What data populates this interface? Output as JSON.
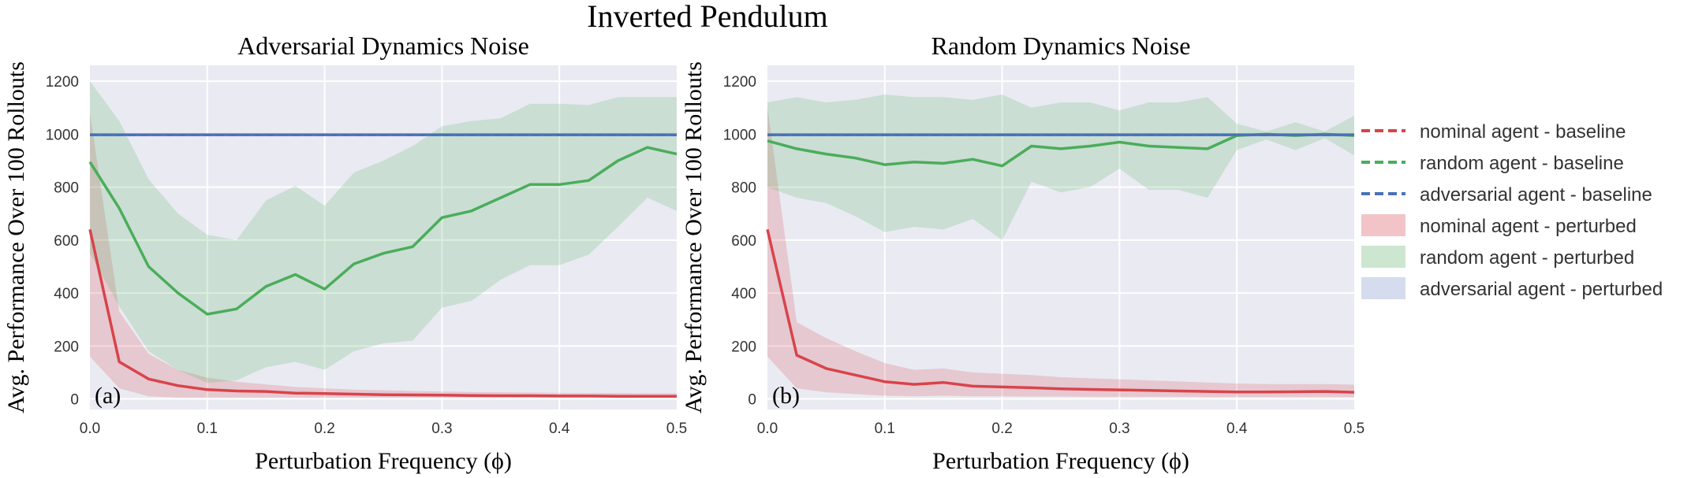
{
  "figure_title": "Inverted Pendulum",
  "legend": [
    {
      "label": "nominal agent - baseline",
      "kind": "line",
      "color": "#d9434b"
    },
    {
      "label": "random agent - baseline",
      "kind": "line",
      "color": "#4aad5a"
    },
    {
      "label": "adversarial agent - baseline",
      "kind": "line",
      "color": "#4a72b8"
    },
    {
      "label": "nominal agent - perturbed",
      "kind": "band",
      "color": "#f2c4c8"
    },
    {
      "label": "random agent - perturbed",
      "kind": "band",
      "color": "#cde6cf"
    },
    {
      "label": "adversarial agent - perturbed",
      "kind": "band",
      "color": "#d5dcee"
    }
  ],
  "colors": {
    "panel_bg": "#eaeaf2",
    "grid": "#ffffff",
    "nominal": "#d9434b",
    "random": "#4aad5a",
    "adversarial": "#4a72b8"
  },
  "chart_data": [
    {
      "type": "line",
      "panel_label": "(a)",
      "title": "Adversarial Dynamics Noise",
      "xlabel": "Perturbation Frequency (ϕ)",
      "ylabel": "Avg. Performance Over 100 Rollouts",
      "xlim": [
        0,
        0.5
      ],
      "ylim": [
        -40,
        1260
      ],
      "xticks": [
        0.0,
        0.1,
        0.2,
        0.3,
        0.4,
        0.5
      ],
      "xtick_labels": [
        "0.0",
        "0.1",
        "0.2",
        "0.3",
        "0.4",
        "0.5"
      ],
      "yticks": [
        0,
        200,
        400,
        600,
        800,
        1000,
        1200
      ],
      "ytick_labels": [
        "0",
        "200",
        "400",
        "600",
        "800",
        "1000",
        "1200"
      ],
      "grid": true,
      "x": [
        0.0,
        0.025,
        0.05,
        0.075,
        0.1,
        0.125,
        0.15,
        0.175,
        0.2,
        0.225,
        0.25,
        0.275,
        0.3,
        0.325,
        0.35,
        0.375,
        0.4,
        0.425,
        0.45,
        0.475,
        0.5
      ],
      "series": [
        {
          "name": "nominal agent - perturbed",
          "color": "#d9434b",
          "style": "solid",
          "values": [
            640,
            140,
            75,
            50,
            35,
            30,
            28,
            22,
            20,
            18,
            16,
            15,
            14,
            13,
            12,
            12,
            11,
            11,
            10,
            10,
            10
          ],
          "lower": [
            160,
            40,
            10,
            5,
            5,
            5,
            5,
            5,
            5,
            5,
            5,
            5,
            5,
            5,
            5,
            5,
            5,
            5,
            5,
            5,
            5
          ],
          "upper": [
            1080,
            330,
            170,
            110,
            80,
            65,
            55,
            45,
            40,
            35,
            33,
            30,
            28,
            26,
            25,
            24,
            23,
            22,
            22,
            21,
            21
          ]
        },
        {
          "name": "random agent - perturbed",
          "color": "#4aad5a",
          "style": "solid",
          "values": [
            895,
            720,
            500,
            400,
            320,
            340,
            425,
            470,
            415,
            510,
            550,
            575,
            685,
            710,
            760,
            810,
            810,
            825,
            900,
            950,
            925
          ],
          "lower": [
            550,
            350,
            180,
            110,
            60,
            70,
            120,
            140,
            110,
            180,
            210,
            220,
            345,
            370,
            450,
            505,
            505,
            545,
            650,
            760,
            710
          ],
          "upper": [
            1200,
            1050,
            830,
            700,
            620,
            600,
            750,
            805,
            730,
            855,
            900,
            955,
            1030,
            1050,
            1060,
            1115,
            1115,
            1110,
            1140,
            1140,
            1140
          ]
        },
        {
          "name": "nominal agent - baseline",
          "color": "#d9434b",
          "style": "dashed",
          "values": [
            997,
            997,
            997,
            997,
            997,
            997,
            997,
            997,
            997,
            997,
            997,
            997,
            997,
            997,
            997,
            997,
            997,
            997,
            997,
            997,
            997
          ]
        },
        {
          "name": "random agent - baseline",
          "color": "#4aad5a",
          "style": "dashed",
          "values": [
            997,
            997,
            997,
            997,
            997,
            997,
            997,
            997,
            997,
            997,
            997,
            997,
            997,
            997,
            997,
            997,
            997,
            997,
            997,
            997,
            997
          ]
        },
        {
          "name": "adversarial agent - baseline",
          "color": "#4a72b8",
          "style": "dashed",
          "values": [
            997,
            997,
            997,
            997,
            997,
            997,
            997,
            997,
            997,
            997,
            997,
            997,
            997,
            997,
            997,
            997,
            997,
            997,
            997,
            997,
            997
          ]
        },
        {
          "name": "adversarial agent - perturbed",
          "color": "#4a72b8",
          "style": "solid",
          "values": [
            998,
            998,
            998,
            998,
            998,
            998,
            998,
            998,
            998,
            998,
            998,
            998,
            998,
            998,
            998,
            998,
            998,
            998,
            998,
            998,
            998
          ],
          "lower": [
            992,
            992,
            992,
            992,
            992,
            992,
            992,
            992,
            992,
            992,
            992,
            992,
            992,
            992,
            992,
            992,
            992,
            992,
            992,
            992,
            992
          ],
          "upper": [
            1003,
            1003,
            1003,
            1003,
            1003,
            1003,
            1003,
            1003,
            1003,
            1003,
            1003,
            1003,
            1003,
            1003,
            1003,
            1003,
            1003,
            1003,
            1003,
            1003,
            1003
          ]
        }
      ]
    },
    {
      "type": "line",
      "panel_label": "(b)",
      "title": "Random Dynamics Noise",
      "xlabel": "Perturbation Frequency (ϕ)",
      "ylabel": "Avg. Performance Over 100 Rollouts",
      "xlim": [
        0,
        0.5
      ],
      "ylim": [
        -40,
        1260
      ],
      "xticks": [
        0.0,
        0.1,
        0.2,
        0.3,
        0.4,
        0.5
      ],
      "xtick_labels": [
        "0.0",
        "0.1",
        "0.2",
        "0.3",
        "0.4",
        "0.5"
      ],
      "yticks": [
        0,
        200,
        400,
        600,
        800,
        1000,
        1200
      ],
      "ytick_labels": [
        "0",
        "200",
        "400",
        "600",
        "800",
        "1000",
        "1200"
      ],
      "grid": true,
      "x": [
        0.0,
        0.025,
        0.05,
        0.075,
        0.1,
        0.125,
        0.15,
        0.175,
        0.2,
        0.225,
        0.25,
        0.275,
        0.3,
        0.325,
        0.35,
        0.375,
        0.4,
        0.425,
        0.45,
        0.475,
        0.5
      ],
      "series": [
        {
          "name": "nominal agent - perturbed",
          "color": "#d9434b",
          "style": "solid",
          "values": [
            640,
            165,
            115,
            90,
            65,
            55,
            62,
            48,
            45,
            42,
            38,
            36,
            34,
            32,
            30,
            28,
            26,
            26,
            27,
            28,
            25
          ],
          "lower": [
            160,
            40,
            25,
            18,
            12,
            10,
            12,
            10,
            10,
            9,
            9,
            8,
            8,
            8,
            8,
            7,
            7,
            7,
            7,
            7,
            7
          ],
          "upper": [
            1100,
            290,
            230,
            180,
            135,
            110,
            115,
            100,
            95,
            90,
            82,
            78,
            74,
            70,
            66,
            62,
            58,
            56,
            56,
            56,
            54
          ]
        },
        {
          "name": "random agent - perturbed",
          "color": "#4aad5a",
          "style": "solid",
          "values": [
            975,
            945,
            925,
            910,
            885,
            895,
            890,
            905,
            880,
            955,
            945,
            955,
            970,
            955,
            950,
            945,
            995,
            1000,
            995,
            1000,
            995
          ],
          "lower": [
            800,
            760,
            740,
            690,
            630,
            650,
            640,
            680,
            600,
            820,
            780,
            800,
            870,
            790,
            790,
            760,
            940,
            980,
            940,
            985,
            920
          ],
          "upper": [
            1120,
            1140,
            1120,
            1130,
            1150,
            1140,
            1140,
            1130,
            1150,
            1100,
            1120,
            1120,
            1090,
            1120,
            1120,
            1140,
            1040,
            1010,
            1045,
            1010,
            1070
          ]
        },
        {
          "name": "nominal agent - baseline",
          "color": "#d9434b",
          "style": "dashed",
          "values": [
            997,
            997,
            997,
            997,
            997,
            997,
            997,
            997,
            997,
            997,
            997,
            997,
            997,
            997,
            997,
            997,
            997,
            997,
            997,
            997,
            997
          ]
        },
        {
          "name": "random agent - baseline",
          "color": "#4aad5a",
          "style": "dashed",
          "values": [
            997,
            997,
            997,
            997,
            997,
            997,
            997,
            997,
            997,
            997,
            997,
            997,
            997,
            997,
            997,
            997,
            997,
            997,
            997,
            997,
            997
          ]
        },
        {
          "name": "adversarial agent - baseline",
          "color": "#4a72b8",
          "style": "dashed",
          "values": [
            997,
            997,
            997,
            997,
            997,
            997,
            997,
            997,
            997,
            997,
            997,
            997,
            997,
            997,
            997,
            997,
            997,
            997,
            997,
            997,
            997
          ]
        },
        {
          "name": "adversarial agent - perturbed",
          "color": "#4a72b8",
          "style": "solid",
          "values": [
            998,
            998,
            998,
            998,
            998,
            998,
            998,
            998,
            998,
            998,
            998,
            998,
            998,
            998,
            998,
            998,
            998,
            998,
            998,
            998,
            998
          ],
          "lower": [
            992,
            992,
            992,
            992,
            992,
            992,
            992,
            992,
            992,
            992,
            992,
            992,
            992,
            992,
            992,
            992,
            992,
            992,
            992,
            992,
            992
          ],
          "upper": [
            1003,
            1003,
            1003,
            1003,
            1003,
            1003,
            1003,
            1003,
            1003,
            1003,
            1003,
            1003,
            1003,
            1003,
            1003,
            1003,
            1003,
            1003,
            1003,
            1003,
            1003
          ]
        }
      ]
    }
  ]
}
